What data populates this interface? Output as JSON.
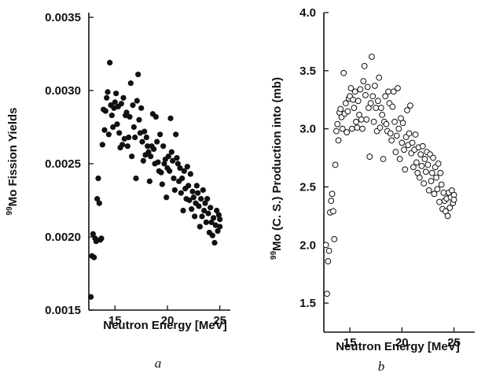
{
  "chart_data": [
    {
      "type": "scatter",
      "panel_label": "a",
      "xlabel": "Neutron Energy [MeV]",
      "ylabel_sup": "99",
      "ylabel_rest": "Mo Fission Yields",
      "xlim": [
        12.5,
        26
      ],
      "ylim": [
        0.0015,
        0.0035
      ],
      "xticks": [
        15,
        20,
        25
      ],
      "yticks": [
        "0.0015",
        "0.0020",
        "0.0025",
        "0.0030",
        "0.0035"
      ],
      "marker": "filled",
      "series": [
        {
          "points": [
            [
              12.7,
              0.00159
            ],
            [
              12.8,
              0.00187
            ],
            [
              12.9,
              0.00202
            ],
            [
              13.0,
              0.00186
            ],
            [
              13.1,
              0.00199
            ],
            [
              13.2,
              0.00197
            ],
            [
              13.3,
              0.00226
            ],
            [
              13.4,
              0.0024
            ],
            [
              13.5,
              0.00223
            ],
            [
              13.6,
              0.00198
            ],
            [
              13.7,
              0.00199
            ],
            [
              13.8,
              0.00263
            ],
            [
              13.9,
              0.00287
            ],
            [
              14.0,
              0.00273
            ],
            [
              14.1,
              0.00286
            ],
            [
              14.2,
              0.00295
            ],
            [
              14.3,
              0.00299
            ],
            [
              14.4,
              0.0027
            ],
            [
              14.5,
              0.00319
            ],
            [
              14.6,
              0.0029
            ],
            [
              14.7,
              0.00283
            ],
            [
              14.8,
              0.00275
            ],
            [
              14.9,
              0.00288
            ],
            [
              15.0,
              0.00292
            ],
            [
              15.1,
              0.00298
            ],
            [
              15.2,
              0.00277
            ],
            [
              15.3,
              0.00289
            ],
            [
              15.4,
              0.00271
            ],
            [
              15.5,
              0.00261
            ],
            [
              15.6,
              0.00291
            ],
            [
              15.7,
              0.00263
            ],
            [
              15.8,
              0.00295
            ],
            [
              15.9,
              0.00267
            ],
            [
              16.0,
              0.00283
            ],
            [
              16.1,
              0.00285
            ],
            [
              16.2,
              0.00262
            ],
            [
              16.3,
              0.00268
            ],
            [
              16.4,
              0.00282
            ],
            [
              16.5,
              0.00305
            ],
            [
              16.6,
              0.00255
            ],
            [
              16.7,
              0.0029
            ],
            [
              16.8,
              0.00275
            ],
            [
              16.9,
              0.00268
            ],
            [
              17.0,
              0.0024
            ],
            [
              17.1,
              0.00293
            ],
            [
              17.2,
              0.00311
            ],
            [
              17.3,
              0.0028
            ],
            [
              17.4,
              0.00271
            ],
            [
              17.5,
              0.00288
            ],
            [
              17.6,
              0.00265
            ],
            [
              17.7,
              0.00252
            ],
            [
              17.8,
              0.00272
            ],
            [
              17.9,
              0.00256
            ],
            [
              18.0,
              0.00268
            ],
            [
              18.1,
              0.00262
            ],
            [
              18.2,
              0.00258
            ],
            [
              18.3,
              0.00238
            ],
            [
              18.4,
              0.00255
            ],
            [
              18.5,
              0.00262
            ],
            [
              18.6,
              0.00284
            ],
            [
              18.7,
              0.0026
            ],
            [
              18.8,
              0.0025
            ],
            [
              18.9,
              0.00282
            ],
            [
              19.0,
              0.00265
            ],
            [
              19.1,
              0.00251
            ],
            [
              19.2,
              0.00245
            ],
            [
              19.3,
              0.0027
            ],
            [
              19.4,
              0.00244
            ],
            [
              19.5,
              0.00236
            ],
            [
              19.6,
              0.00262
            ],
            [
              19.7,
              0.0025
            ],
            [
              19.8,
              0.00253
            ],
            [
              19.9,
              0.00227
            ],
            [
              20.0,
              0.00247
            ],
            [
              20.1,
              0.00255
            ],
            [
              20.2,
              0.00245
            ],
            [
              20.3,
              0.00281
            ],
            [
              20.4,
              0.00258
            ],
            [
              20.5,
              0.00252
            ],
            [
              20.6,
              0.0024
            ],
            [
              20.7,
              0.00232
            ],
            [
              20.8,
              0.0027
            ],
            [
              20.9,
              0.00254
            ],
            [
              21.0,
              0.0025
            ],
            [
              21.1,
              0.00238
            ],
            [
              21.2,
              0.00247
            ],
            [
              21.3,
              0.0023
            ],
            [
              21.4,
              0.0024
            ],
            [
              21.5,
              0.00218
            ],
            [
              21.6,
              0.00245
            ],
            [
              21.7,
              0.00233
            ],
            [
              21.8,
              0.00226
            ],
            [
              21.9,
              0.00248
            ],
            [
              22.0,
              0.00235
            ],
            [
              22.1,
              0.00225
            ],
            [
              22.2,
              0.00243
            ],
            [
              22.3,
              0.00219
            ],
            [
              22.4,
              0.00231
            ],
            [
              22.5,
              0.00227
            ],
            [
              22.6,
              0.00214
            ],
            [
              22.7,
              0.00223
            ],
            [
              22.8,
              0.00235
            ],
            [
              22.9,
              0.0023
            ],
            [
              23.0,
              0.00221
            ],
            [
              23.1,
              0.00207
            ],
            [
              23.2,
              0.00226
            ],
            [
              23.3,
              0.00214
            ],
            [
              23.4,
              0.00232
            ],
            [
              23.5,
              0.00218
            ],
            [
              23.6,
              0.00223
            ],
            [
              23.7,
              0.0021
            ],
            [
              23.8,
              0.00226
            ],
            [
              23.9,
              0.00216
            ],
            [
              24.0,
              0.00203
            ],
            [
              24.1,
              0.0022
            ],
            [
              24.2,
              0.0021
            ],
            [
              24.3,
              0.00201
            ],
            [
              24.4,
              0.00213
            ],
            [
              24.5,
              0.00196
            ],
            [
              24.6,
              0.00208
            ],
            [
              24.7,
              0.00218
            ],
            [
              24.8,
              0.00204
            ],
            [
              24.9,
              0.00215
            ],
            [
              25.0,
              0.00207
            ],
            [
              25.0,
              0.00212
            ]
          ]
        }
      ]
    },
    {
      "type": "scatter",
      "panel_label": "b",
      "xlabel": "Neutron Energy [MeV]",
      "ylabel_sup": "99",
      "ylabel_rest": "Mo (C. S.) Production into (mb)",
      "xlim": [
        12.5,
        27
      ],
      "ylim": [
        1.25,
        4.0
      ],
      "xticks": [
        15,
        20,
        25
      ],
      "yticks": [
        "1.5",
        "2.0",
        "2.5",
        "3.0",
        "3.5",
        "4.0"
      ],
      "marker": "open",
      "series": [
        {
          "points": [
            [
              12.7,
              2.0
            ],
            [
              12.8,
              1.58
            ],
            [
              12.9,
              1.86
            ],
            [
              13.0,
              1.95
            ],
            [
              13.1,
              2.28
            ],
            [
              13.2,
              2.38
            ],
            [
              13.3,
              2.44
            ],
            [
              13.4,
              2.29
            ],
            [
              13.5,
              2.05
            ],
            [
              13.6,
              2.69
            ],
            [
              13.7,
              2.98
            ],
            [
              13.8,
              3.04
            ],
            [
              13.9,
              2.9
            ],
            [
              14.0,
              3.14
            ],
            [
              14.1,
              3.17
            ],
            [
              14.2,
              3.1
            ],
            [
              14.3,
              3.0
            ],
            [
              14.4,
              3.48
            ],
            [
              14.5,
              3.13
            ],
            [
              14.6,
              3.22
            ],
            [
              14.7,
              2.97
            ],
            [
              14.8,
              3.15
            ],
            [
              14.9,
              3.26
            ],
            [
              15.0,
              3.28
            ],
            [
              15.1,
              3.35
            ],
            [
              15.2,
              3.0
            ],
            [
              15.3,
              3.25
            ],
            [
              15.4,
              3.18
            ],
            [
              15.5,
              3.32
            ],
            [
              15.6,
              3.06
            ],
            [
              15.7,
              3.01
            ],
            [
              15.8,
              3.24
            ],
            [
              15.9,
              3.12
            ],
            [
              16.0,
              3.34
            ],
            [
              16.1,
              3.08
            ],
            [
              16.2,
              3.0
            ],
            [
              16.3,
              3.41
            ],
            [
              16.4,
              3.54
            ],
            [
              16.5,
              3.29
            ],
            [
              16.6,
              3.08
            ],
            [
              16.7,
              3.36
            ],
            [
              16.8,
              3.18
            ],
            [
              16.9,
              2.76
            ],
            [
              17.0,
              3.22
            ],
            [
              17.1,
              3.62
            ],
            [
              17.2,
              3.28
            ],
            [
              17.3,
              3.06
            ],
            [
              17.4,
              3.37
            ],
            [
              17.5,
              3.18
            ],
            [
              17.6,
              2.98
            ],
            [
              17.7,
              3.24
            ],
            [
              17.8,
              3.44
            ],
            [
              17.9,
              3.01
            ],
            [
              18.0,
              3.18
            ],
            [
              18.1,
              3.12
            ],
            [
              18.2,
              2.74
            ],
            [
              18.3,
              3.06
            ],
            [
              18.4,
              3.28
            ],
            [
              18.5,
              3.04
            ],
            [
              18.6,
              2.98
            ],
            [
              18.7,
              3.32
            ],
            [
              18.8,
              3.22
            ],
            [
              18.9,
              2.96
            ],
            [
              19.0,
              2.9
            ],
            [
              19.1,
              3.19
            ],
            [
              19.2,
              3.32
            ],
            [
              19.3,
              3.06
            ],
            [
              19.4,
              2.8
            ],
            [
              19.5,
              2.94
            ],
            [
              19.6,
              3.35
            ],
            [
              19.7,
              3.0
            ],
            [
              19.8,
              2.74
            ],
            [
              19.9,
              3.09
            ],
            [
              20.0,
              2.88
            ],
            [
              20.1,
              3.05
            ],
            [
              20.2,
              2.82
            ],
            [
              20.3,
              2.65
            ],
            [
              20.4,
              2.93
            ],
            [
              20.5,
              3.16
            ],
            [
              20.6,
              2.86
            ],
            [
              20.7,
              2.96
            ],
            [
              20.8,
              3.2
            ],
            [
              20.9,
              2.79
            ],
            [
              21.0,
              2.88
            ],
            [
              21.1,
              2.67
            ],
            [
              21.2,
              2.82
            ],
            [
              21.3,
              2.95
            ],
            [
              21.4,
              2.71
            ],
            [
              21.5,
              2.62
            ],
            [
              21.6,
              2.84
            ],
            [
              21.7,
              2.58
            ],
            [
              21.8,
              2.78
            ],
            [
              21.9,
              2.68
            ],
            [
              22.0,
              2.85
            ],
            [
              22.1,
              2.53
            ],
            [
              22.2,
              2.74
            ],
            [
              22.3,
              2.63
            ],
            [
              22.4,
              2.8
            ],
            [
              22.5,
              2.69
            ],
            [
              22.6,
              2.47
            ],
            [
              22.7,
              2.78
            ],
            [
              22.8,
              2.55
            ],
            [
              22.9,
              2.62
            ],
            [
              23.0,
              2.75
            ],
            [
              23.1,
              2.44
            ],
            [
              23.2,
              2.67
            ],
            [
              23.3,
              2.58
            ],
            [
              23.4,
              2.48
            ],
            [
              23.5,
              2.7
            ],
            [
              23.6,
              2.37
            ],
            [
              23.7,
              2.62
            ],
            [
              23.8,
              2.52
            ],
            [
              23.9,
              2.31
            ],
            [
              24.0,
              2.45
            ],
            [
              24.1,
              2.38
            ],
            [
              24.2,
              2.29
            ],
            [
              24.3,
              2.4
            ],
            [
              24.4,
              2.25
            ],
            [
              24.5,
              2.45
            ],
            [
              24.6,
              2.32
            ],
            [
              24.7,
              2.41
            ],
            [
              24.8,
              2.47
            ],
            [
              24.9,
              2.36
            ],
            [
              25.0,
              2.43
            ],
            [
              25.0,
              2.39
            ]
          ]
        }
      ]
    }
  ]
}
